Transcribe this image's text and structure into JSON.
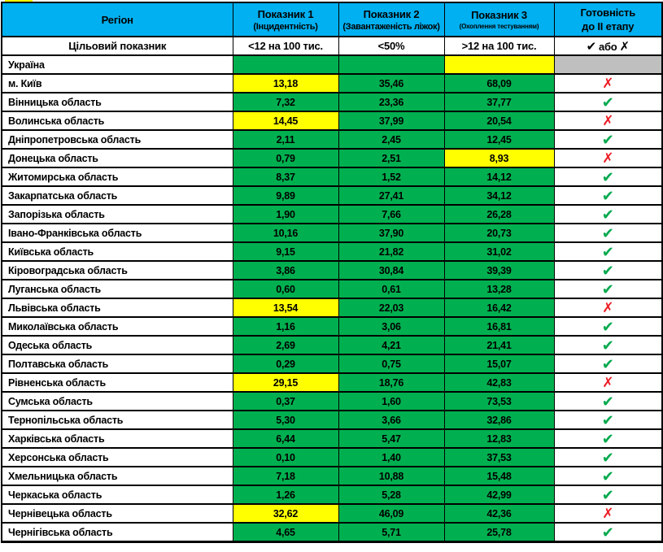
{
  "header": {
    "region": "Регіон",
    "indicator1": {
      "title": "Показник 1",
      "subtitle": "(Інцидентність)"
    },
    "indicator2": {
      "title": "Показник 2",
      "subtitle": "(Завантаженість ліжок)"
    },
    "indicator3": {
      "title": "Показник 3",
      "subtitle": "(Охоплення тестуванням)"
    },
    "readiness": {
      "line1": "Готовність",
      "line2": "до II етапу"
    }
  },
  "target_row": {
    "label": "Цільовий показник",
    "indicator1": "<12 на 100 тис.",
    "indicator2": "<50%",
    "indicator3": ">12 на 100 тис.",
    "readiness_check": "✔",
    "readiness_or": "або",
    "readiness_x": "✗"
  },
  "glyphs": {
    "check": "✔",
    "cross": "✗"
  },
  "colors": {
    "header_blue": "#00B0F0",
    "green": "#00B050",
    "yellow": "#FFFF00",
    "gray": "#BFBFBF",
    "white": "#FFFFFF",
    "check_green": "#00A94E",
    "cross_red": "#EC1C24"
  },
  "chart_data": {
    "type": "table",
    "title": "Готовність регіонів до II етапу (показники по регіонах)",
    "columns": [
      "Регіон",
      "Показник 1 (Інцидентність)",
      "Показник 2 (Завантаженість ліжок)",
      "Показник 3 (Охоплення тестуванням)",
      "Готовність до II етапу"
    ],
    "target_values": [
      "Цільовий показник",
      "<12 на 100 тис.",
      "<50%",
      ">12 на 100 тис.",
      "✔ або ✗"
    ],
    "rows": [
      {
        "region": "Україна",
        "v1": "",
        "v1_bg": "green",
        "v2": "",
        "v2_bg": "green",
        "v3": "",
        "v3_bg": "yellow",
        "status": "none",
        "status_bg": "gray"
      },
      {
        "region": "м. Київ",
        "v1": "13,18",
        "v1_bg": "yellow",
        "v2": "35,46",
        "v2_bg": "green",
        "v3": "68,09",
        "v3_bg": "green",
        "status": "cross",
        "status_bg": "white"
      },
      {
        "region": "Вінницька область",
        "v1": "7,32",
        "v1_bg": "green",
        "v2": "23,36",
        "v2_bg": "green",
        "v3": "37,77",
        "v3_bg": "green",
        "status": "check",
        "status_bg": "white"
      },
      {
        "region": "Волинська область",
        "v1": "14,45",
        "v1_bg": "yellow",
        "v2": "37,99",
        "v2_bg": "green",
        "v3": "20,54",
        "v3_bg": "green",
        "status": "cross",
        "status_bg": "white"
      },
      {
        "region": "Дніпропетровська область",
        "v1": "2,11",
        "v1_bg": "green",
        "v2": "2,45",
        "v2_bg": "green",
        "v3": "12,45",
        "v3_bg": "green",
        "status": "check",
        "status_bg": "white"
      },
      {
        "region": "Донецька область",
        "v1": "0,79",
        "v1_bg": "green",
        "v2": "2,51",
        "v2_bg": "green",
        "v3": "8,93",
        "v3_bg": "yellow",
        "status": "cross",
        "status_bg": "white"
      },
      {
        "region": "Житомирська область",
        "v1": "8,37",
        "v1_bg": "green",
        "v2": "1,52",
        "v2_bg": "green",
        "v3": "14,12",
        "v3_bg": "green",
        "status": "check",
        "status_bg": "white"
      },
      {
        "region": "Закарпатська область",
        "v1": "9,89",
        "v1_bg": "green",
        "v2": "27,41",
        "v2_bg": "green",
        "v3": "34,12",
        "v3_bg": "green",
        "status": "check",
        "status_bg": "white"
      },
      {
        "region": "Запорізька область",
        "v1": "1,90",
        "v1_bg": "green",
        "v2": "7,66",
        "v2_bg": "green",
        "v3": "26,28",
        "v3_bg": "green",
        "status": "check",
        "status_bg": "white"
      },
      {
        "region": "Івано-Франківська область",
        "v1": "10,16",
        "v1_bg": "green",
        "v2": "37,90",
        "v2_bg": "green",
        "v3": "20,73",
        "v3_bg": "green",
        "status": "check",
        "status_bg": "white"
      },
      {
        "region": "Київська область",
        "v1": "9,15",
        "v1_bg": "green",
        "v2": "21,82",
        "v2_bg": "green",
        "v3": "31,02",
        "v3_bg": "green",
        "status": "check",
        "status_bg": "white"
      },
      {
        "region": "Кіровоградська область",
        "v1": "3,86",
        "v1_bg": "green",
        "v2": "30,84",
        "v2_bg": "green",
        "v3": "39,39",
        "v3_bg": "green",
        "status": "check",
        "status_bg": "white"
      },
      {
        "region": "Луганська область",
        "v1": "0,60",
        "v1_bg": "green",
        "v2": "0,61",
        "v2_bg": "green",
        "v3": "13,28",
        "v3_bg": "green",
        "status": "check",
        "status_bg": "white"
      },
      {
        "region": "Львівська область",
        "v1": "13,54",
        "v1_bg": "yellow",
        "v2": "22,03",
        "v2_bg": "green",
        "v3": "16,42",
        "v3_bg": "green",
        "status": "cross",
        "status_bg": "white"
      },
      {
        "region": "Миколаївська область",
        "v1": "1,16",
        "v1_bg": "green",
        "v2": "3,06",
        "v2_bg": "green",
        "v3": "16,81",
        "v3_bg": "green",
        "status": "check",
        "status_bg": "white"
      },
      {
        "region": "Одеська область",
        "v1": "2,69",
        "v1_bg": "green",
        "v2": "4,21",
        "v2_bg": "green",
        "v3": "21,41",
        "v3_bg": "green",
        "status": "check",
        "status_bg": "white"
      },
      {
        "region": "Полтавська область",
        "v1": "0,29",
        "v1_bg": "green",
        "v2": "0,75",
        "v2_bg": "green",
        "v3": "15,07",
        "v3_bg": "green",
        "status": "check",
        "status_bg": "white"
      },
      {
        "region": "Рівненська область",
        "v1": "29,15",
        "v1_bg": "yellow",
        "v2": "18,76",
        "v2_bg": "green",
        "v3": "42,83",
        "v3_bg": "green",
        "status": "cross",
        "status_bg": "white"
      },
      {
        "region": "Сумська область",
        "v1": "0,37",
        "v1_bg": "green",
        "v2": "1,60",
        "v2_bg": "green",
        "v3": "73,53",
        "v3_bg": "green",
        "status": "check",
        "status_bg": "white"
      },
      {
        "region": "Тернопільська область",
        "v1": "5,30",
        "v1_bg": "green",
        "v2": "3,66",
        "v2_bg": "green",
        "v3": "32,86",
        "v3_bg": "green",
        "status": "check",
        "status_bg": "white"
      },
      {
        "region": "Харківська область",
        "v1": "6,44",
        "v1_bg": "green",
        "v2": "5,47",
        "v2_bg": "green",
        "v3": "12,83",
        "v3_bg": "green",
        "status": "check",
        "status_bg": "white"
      },
      {
        "region": "Херсонська область",
        "v1": "0,10",
        "v1_bg": "green",
        "v2": "1,40",
        "v2_bg": "green",
        "v3": "37,53",
        "v3_bg": "green",
        "status": "check",
        "status_bg": "white"
      },
      {
        "region": "Хмельницька область",
        "v1": "7,18",
        "v1_bg": "green",
        "v2": "10,88",
        "v2_bg": "green",
        "v3": "15,48",
        "v3_bg": "green",
        "status": "check",
        "status_bg": "white"
      },
      {
        "region": "Черкаська область",
        "v1": "1,26",
        "v1_bg": "green",
        "v2": "5,28",
        "v2_bg": "green",
        "v3": "42,99",
        "v3_bg": "green",
        "status": "check",
        "status_bg": "white"
      },
      {
        "region": "Чернівецька область",
        "v1": "32,62",
        "v1_bg": "yellow",
        "v2": "46,09",
        "v2_bg": "green",
        "v3": "42,36",
        "v3_bg": "green",
        "status": "cross",
        "status_bg": "white"
      },
      {
        "region": "Чернігівська область",
        "v1": "4,65",
        "v1_bg": "green",
        "v2": "5,71",
        "v2_bg": "green",
        "v3": "25,78",
        "v3_bg": "green",
        "status": "check",
        "status_bg": "white"
      }
    ]
  }
}
